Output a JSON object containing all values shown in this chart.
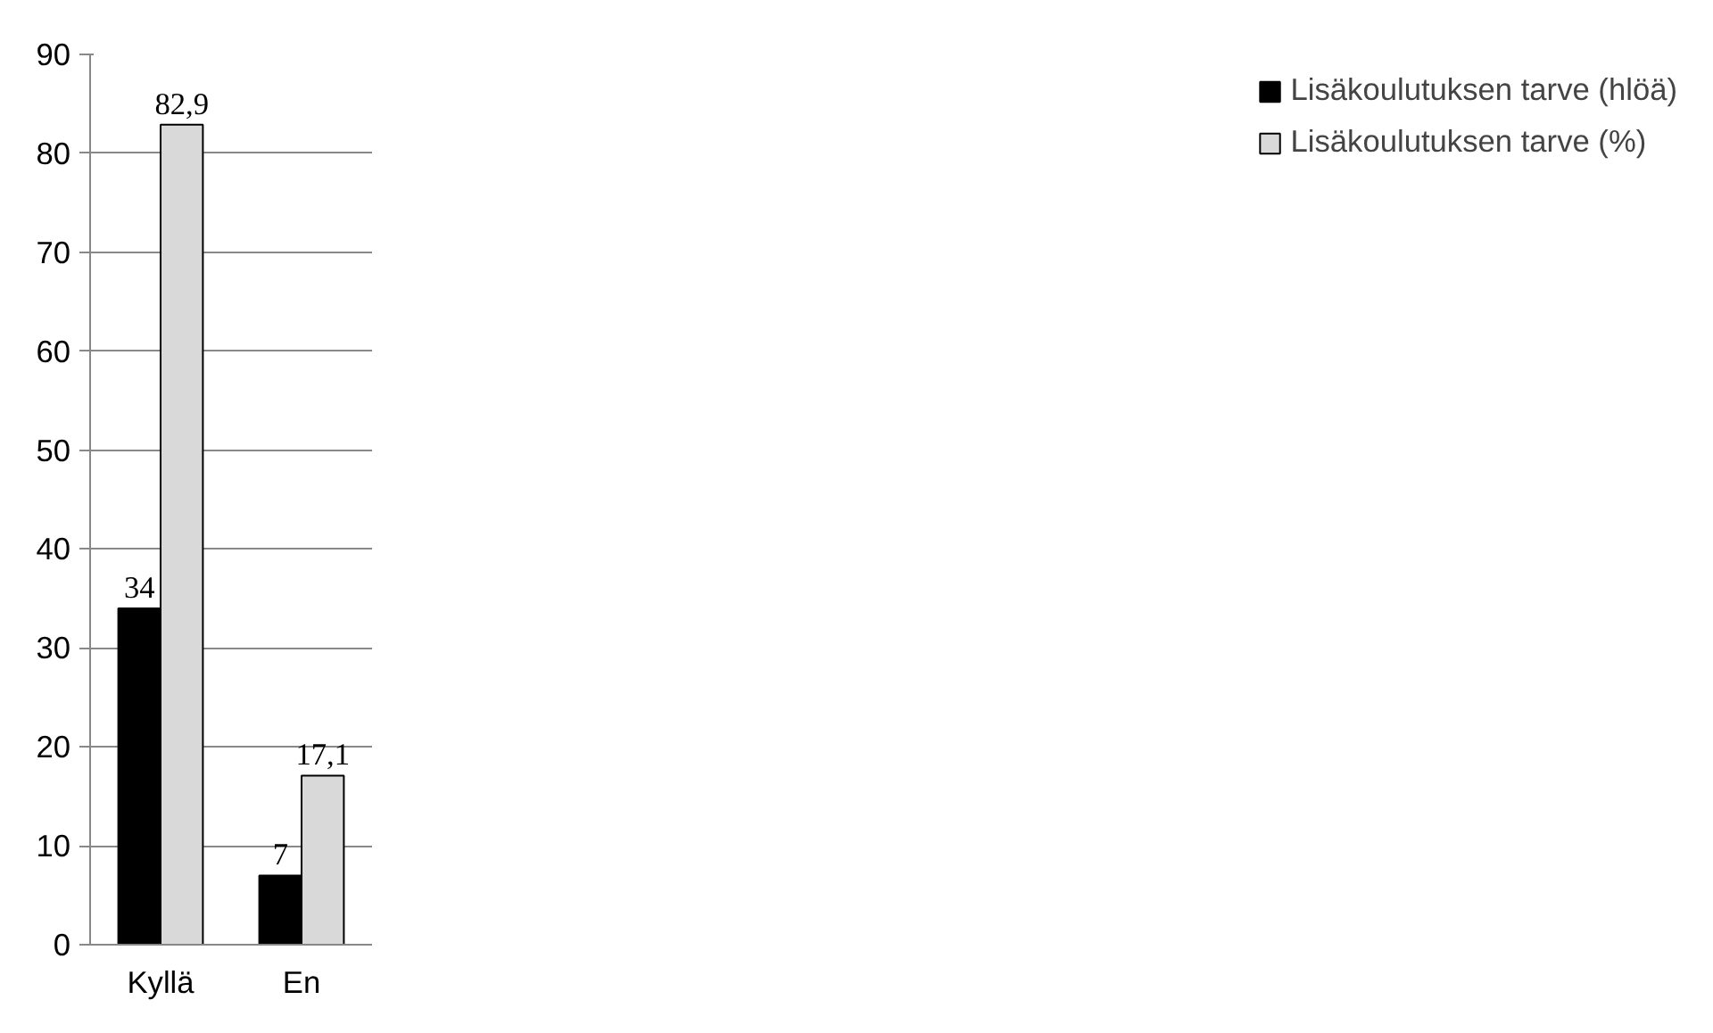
{
  "chart_data": {
    "type": "bar",
    "categories": [
      "Kyllä",
      "En"
    ],
    "series": [
      {
        "name": "Lisäkoulutuksen tarve (hlöä)",
        "color": "#000000",
        "values": [
          34,
          7
        ],
        "value_labels": [
          "34",
          "7"
        ]
      },
      {
        "name": "Lisäkoulutuksen tarve (%)",
        "color": "#d9d9d9",
        "values": [
          82.9,
          17.1
        ],
        "value_labels": [
          "82,9",
          "17,1"
        ]
      }
    ],
    "ylim": [
      0,
      90
    ],
    "yticks": [
      0,
      10,
      20,
      30,
      40,
      50,
      60,
      70,
      80,
      90
    ],
    "grid": "y",
    "legend": "right"
  }
}
